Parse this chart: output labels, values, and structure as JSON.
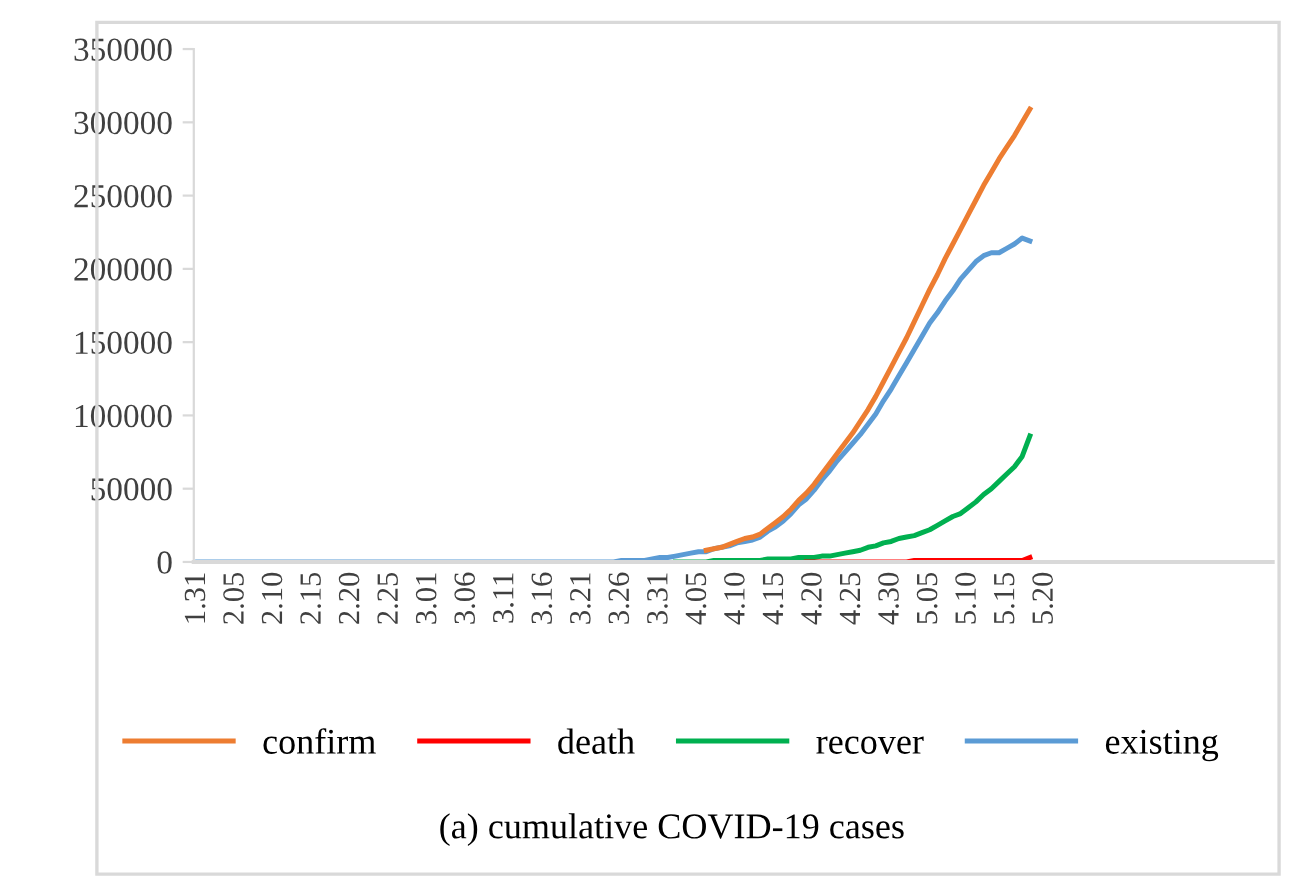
{
  "chart_data": {
    "type": "line",
    "title": "(a) cumulative COVID-19 cases",
    "categories": [
      "1.31",
      null,
      null,
      null,
      null,
      "2.05",
      null,
      null,
      null,
      null,
      "2.10",
      null,
      null,
      null,
      null,
      "2.15",
      null,
      null,
      null,
      null,
      "2.20",
      null,
      null,
      null,
      null,
      "2.25",
      null,
      null,
      null,
      null,
      "3.01",
      null,
      null,
      null,
      null,
      "3.06",
      null,
      null,
      null,
      null,
      "3.11",
      null,
      null,
      null,
      null,
      "3.16",
      null,
      null,
      null,
      null,
      "3.21",
      null,
      null,
      null,
      null,
      "3.26",
      null,
      null,
      null,
      null,
      "3.31",
      null,
      null,
      null,
      null,
      "4.05",
      null,
      null,
      null,
      null,
      "4.10",
      null,
      null,
      null,
      null,
      "4.15",
      null,
      null,
      null,
      null,
      "4.20",
      null,
      null,
      null,
      null,
      "4.25",
      null,
      null,
      null,
      null,
      "4.30",
      null,
      null,
      null,
      null,
      "5.05",
      null,
      null,
      null,
      null,
      "5.10",
      null,
      null,
      null,
      null,
      "5.15",
      null,
      null,
      null,
      null,
      "5.20",
      null,
      null,
      null,
      null,
      null,
      null,
      null,
      null,
      null,
      null,
      null,
      null,
      null,
      null,
      null,
      null,
      null,
      null,
      null,
      null,
      null,
      null,
      null,
      null,
      null,
      null,
      null,
      null,
      null
    ],
    "series": [
      {
        "name": "confirm",
        "color": "#ed7d31",
        "values": [
          null,
          null,
          null,
          null,
          null,
          null,
          null,
          null,
          null,
          null,
          null,
          null,
          null,
          null,
          null,
          null,
          null,
          null,
          null,
          null,
          null,
          null,
          null,
          null,
          null,
          null,
          null,
          null,
          null,
          null,
          null,
          null,
          null,
          null,
          null,
          null,
          null,
          null,
          null,
          null,
          null,
          null,
          null,
          null,
          null,
          null,
          null,
          null,
          null,
          null,
          null,
          null,
          null,
          null,
          null,
          null,
          null,
          null,
          null,
          null,
          null,
          null,
          null,
          null,
          null,
          null,
          8000,
          9000,
          10000,
          12000,
          14000,
          16000,
          17000,
          19000,
          23000,
          27000,
          31000,
          36000,
          42000,
          47000,
          53000,
          60000,
          67000,
          74000,
          81000,
          88000,
          96000,
          104000,
          113000,
          123000,
          133000,
          143000,
          153000,
          164000,
          175000,
          186000,
          196000,
          207000,
          217000,
          227000,
          237000,
          247000,
          257000,
          266000,
          275000,
          283000,
          291000,
          300000,
          309000,
          null,
          null,
          null,
          null,
          null,
          null,
          null,
          null,
          null,
          null,
          null,
          null,
          null,
          null,
          null,
          null,
          null,
          null,
          null,
          null,
          null,
          null,
          null,
          null,
          null,
          null,
          null,
          null,
          null,
          null,
          null
        ]
      },
      {
        "name": "death",
        "color": "#ff0000",
        "values": [
          null,
          null,
          null,
          null,
          null,
          null,
          null,
          null,
          null,
          null,
          null,
          null,
          null,
          null,
          null,
          null,
          null,
          null,
          null,
          null,
          null,
          null,
          null,
          null,
          null,
          null,
          null,
          null,
          null,
          null,
          null,
          null,
          null,
          null,
          null,
          null,
          null,
          null,
          null,
          null,
          null,
          null,
          null,
          null,
          null,
          null,
          null,
          null,
          null,
          null,
          null,
          null,
          null,
          null,
          null,
          null,
          null,
          null,
          null,
          null,
          null,
          null,
          null,
          null,
          null,
          null,
          null,
          null,
          null,
          null,
          null,
          null,
          null,
          null,
          null,
          null,
          null,
          null,
          null,
          0,
          0,
          0,
          0,
          0,
          0,
          0,
          0,
          0,
          0,
          0,
          0,
          0,
          0,
          1000,
          1000,
          1000,
          1000,
          1000,
          1000,
          1000,
          1000,
          1000,
          1000,
          1000,
          1000,
          1000,
          1000,
          1000,
          3000,
          null,
          null,
          null,
          null,
          null,
          null,
          null,
          null,
          null,
          null,
          null,
          null,
          null,
          null,
          null,
          null,
          null,
          null,
          null,
          null,
          null,
          null,
          null,
          null,
          null,
          null,
          null,
          null,
          null,
          null,
          null
        ]
      },
      {
        "name": "recover",
        "color": "#00b050",
        "values": [
          null,
          null,
          null,
          null,
          null,
          null,
          null,
          null,
          null,
          null,
          null,
          null,
          null,
          null,
          null,
          null,
          null,
          null,
          null,
          null,
          null,
          null,
          null,
          null,
          null,
          null,
          null,
          null,
          null,
          null,
          null,
          null,
          null,
          null,
          null,
          null,
          null,
          null,
          null,
          null,
          null,
          null,
          null,
          null,
          null,
          null,
          null,
          null,
          null,
          null,
          null,
          null,
          null,
          null,
          null,
          null,
          null,
          null,
          null,
          null,
          null,
          null,
          0,
          0,
          0,
          0,
          0,
          1000,
          1000,
          1000,
          1000,
          1000,
          1000,
          1000,
          2000,
          2000,
          2000,
          2000,
          3000,
          3000,
          3000,
          4000,
          4000,
          5000,
          6000,
          7000,
          8000,
          10000,
          11000,
          13000,
          14000,
          16000,
          17000,
          18000,
          20000,
          22000,
          25000,
          28000,
          31000,
          33000,
          37000,
          41000,
          46000,
          50000,
          55000,
          60000,
          65000,
          72000,
          86000,
          null,
          null,
          null,
          null,
          null,
          null,
          null,
          null,
          null,
          null,
          null,
          null,
          null,
          null,
          null,
          null,
          null,
          null,
          null,
          null,
          null,
          null,
          null,
          null,
          null,
          null,
          null,
          null,
          null,
          null,
          null
        ]
      },
      {
        "name": "existing",
        "color": "#5b9bd5",
        "values": [
          0,
          0,
          0,
          0,
          0,
          0,
          0,
          0,
          0,
          0,
          0,
          0,
          0,
          0,
          0,
          0,
          0,
          0,
          0,
          0,
          0,
          0,
          0,
          0,
          0,
          0,
          0,
          0,
          0,
          0,
          0,
          0,
          0,
          0,
          0,
          0,
          0,
          0,
          0,
          0,
          0,
          0,
          0,
          0,
          0,
          0,
          0,
          0,
          0,
          0,
          0,
          0,
          0,
          0,
          0,
          1000,
          1000,
          1000,
          1000,
          2000,
          3000,
          3000,
          4000,
          5000,
          6000,
          7000,
          7000,
          9000,
          10000,
          11000,
          13000,
          14000,
          15000,
          17000,
          21000,
          24000,
          28000,
          33000,
          39000,
          43000,
          49000,
          56000,
          62000,
          69000,
          75000,
          81000,
          87000,
          94000,
          101000,
          110000,
          118000,
          127000,
          136000,
          145000,
          154000,
          163000,
          170000,
          178000,
          185000,
          193000,
          199000,
          205000,
          209000,
          211000,
          211000,
          214000,
          217000,
          221000,
          219000,
          null,
          null,
          null,
          null,
          null,
          null,
          null,
          null,
          null,
          null,
          null,
          null,
          null,
          null,
          null,
          null,
          null,
          null,
          null,
          null,
          null,
          null,
          null,
          null,
          null,
          null,
          null,
          null,
          null,
          null,
          null
        ]
      }
    ],
    "ylim": [
      0,
      350000
    ],
    "yticks": [
      0,
      50000,
      100000,
      150000,
      200000,
      250000,
      300000,
      350000
    ],
    "grid": false,
    "legend": "bottom",
    "marker": "none",
    "line_style": "solid"
  }
}
